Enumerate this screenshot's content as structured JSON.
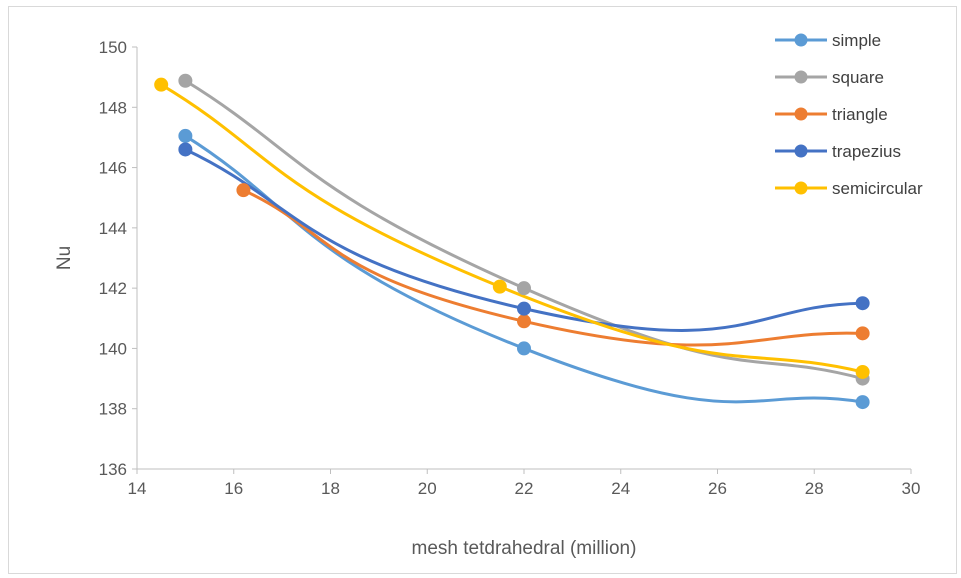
{
  "chart_data": {
    "type": "scatter",
    "title": "",
    "xlabel": "mesh tetdrahedral (million)",
    "ylabel": "Nu",
    "xlim": [
      14,
      30
    ],
    "ylim": [
      136,
      150
    ],
    "xticks": [
      "14",
      "16",
      "18",
      "20",
      "22",
      "24",
      "26",
      "28",
      "30"
    ],
    "yticks": [
      "136",
      "138",
      "140",
      "142",
      "144",
      "146",
      "148",
      "150"
    ],
    "grid": false,
    "legend_position": "top-right",
    "smooth_lines": true,
    "series": [
      {
        "name": "simple",
        "color": "#5B9BD5",
        "points": [
          [
            15,
            147.05
          ],
          [
            22,
            140.0
          ],
          [
            29,
            138.22
          ]
        ]
      },
      {
        "name": "square",
        "color": "#A5A5A5",
        "points": [
          [
            15,
            148.88
          ],
          [
            22,
            142.0
          ],
          [
            29,
            139.0
          ]
        ]
      },
      {
        "name": "triangle",
        "color": "#ED7D31",
        "points": [
          [
            16.2,
            145.25
          ],
          [
            22,
            140.9
          ],
          [
            29,
            140.5
          ]
        ]
      },
      {
        "name": "trapezius",
        "color": "#4472C4",
        "points": [
          [
            15,
            146.6
          ],
          [
            22,
            141.32
          ],
          [
            29,
            141.5
          ]
        ]
      },
      {
        "name": "semicircular",
        "color": "#FFC000",
        "points": [
          [
            14.5,
            148.75
          ],
          [
            21.5,
            142.05
          ],
          [
            29,
            139.22
          ]
        ]
      }
    ]
  }
}
